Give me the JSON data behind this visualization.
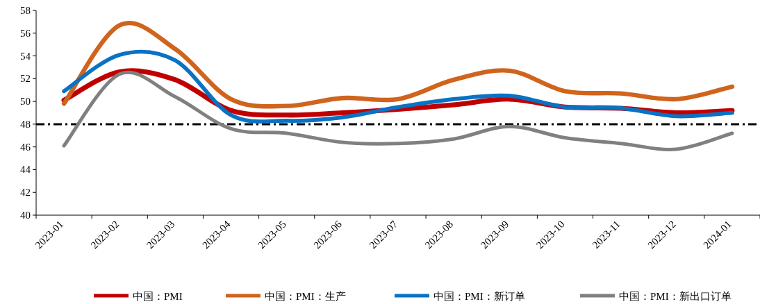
{
  "chart_data": {
    "type": "line",
    "categories": [
      "2023-01",
      "2023-02",
      "2023-03",
      "2023-04",
      "2023-05",
      "2023-06",
      "2023-07",
      "2023-08",
      "2023-09",
      "2023-10",
      "2023-11",
      "2023-12",
      "2024-01"
    ],
    "series": [
      {
        "name": "中国：PMI",
        "color": "#c00000",
        "values": [
          50.1,
          52.6,
          51.9,
          49.2,
          48.8,
          49.0,
          49.3,
          49.7,
          50.2,
          49.5,
          49.4,
          49.0,
          49.2
        ]
      },
      {
        "name": "中国：PMI：生产",
        "color": "#d0641c",
        "values": [
          49.8,
          56.7,
          54.6,
          50.2,
          49.6,
          50.3,
          50.2,
          51.9,
          52.7,
          50.9,
          50.7,
          50.2,
          51.3
        ]
      },
      {
        "name": "中国：PMI：新订单",
        "color": "#0a72c4",
        "values": [
          50.9,
          54.1,
          53.6,
          48.8,
          48.3,
          48.6,
          49.5,
          50.2,
          50.5,
          49.5,
          49.4,
          48.7,
          49.0
        ]
      },
      {
        "name": "中国：PMI：新出口订单",
        "color": "#808080",
        "values": [
          46.1,
          52.4,
          50.4,
          47.6,
          47.2,
          46.4,
          46.3,
          46.7,
          47.8,
          46.8,
          46.3,
          45.8,
          47.2
        ]
      }
    ],
    "ylim": [
      40,
      58
    ],
    "yticks": [
      40,
      42,
      44,
      46,
      48,
      50,
      52,
      54,
      56,
      58
    ],
    "ref_lines": [
      {
        "axis": "y",
        "value": 48,
        "color": "#000000",
        "line_style": "dashdot"
      }
    ],
    "grid": false,
    "legend": "bottom",
    "marker": "none",
    "line_style": "solid"
  }
}
